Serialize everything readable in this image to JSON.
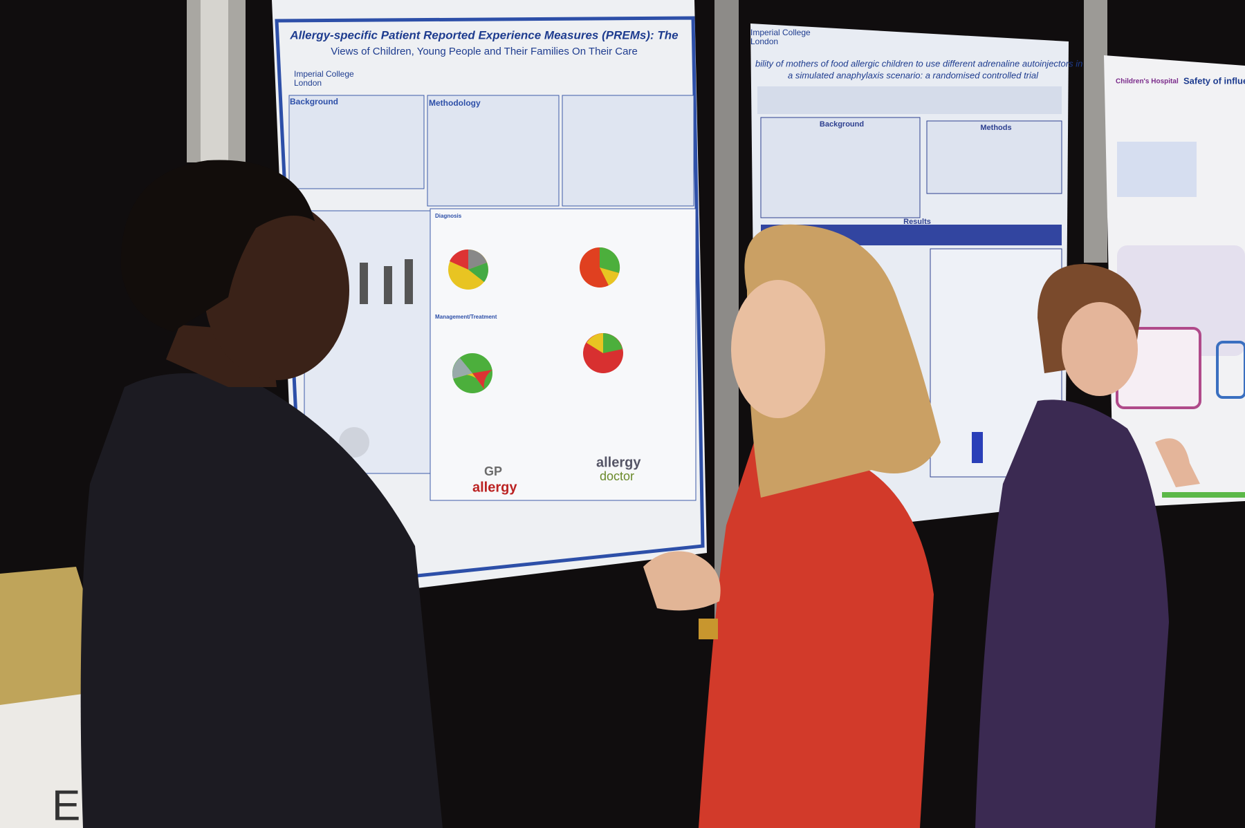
{
  "poster_left": {
    "title_lines": [
      "Allergy-specific Patient Reported Experience Measures (PREMs): The",
      "Views of Children, Young People and Their Families On Their Care"
    ],
    "institution_lines": [
      "Imperial College",
      "London"
    ],
    "sections": [
      "Background",
      "Methodology",
      "Diagnosis",
      "Management/Treatment"
    ],
    "word_cloud": [
      "allergy",
      "GP",
      "allergy",
      "doctor"
    ]
  },
  "poster_middle": {
    "institution_lines": [
      "Imperial College",
      "London"
    ],
    "title_lines": [
      "bility of mothers of food allergic children to use different adrenaline autoinjectors in",
      "a simulated anaphylaxis scenario: a randomised controlled trial"
    ],
    "sections": [
      "Background",
      "Methods",
      "Results"
    ]
  },
  "poster_right": {
    "institution": "Children's Hospital",
    "title": "Safety of influenza"
  },
  "bag_text": "Eme"
}
